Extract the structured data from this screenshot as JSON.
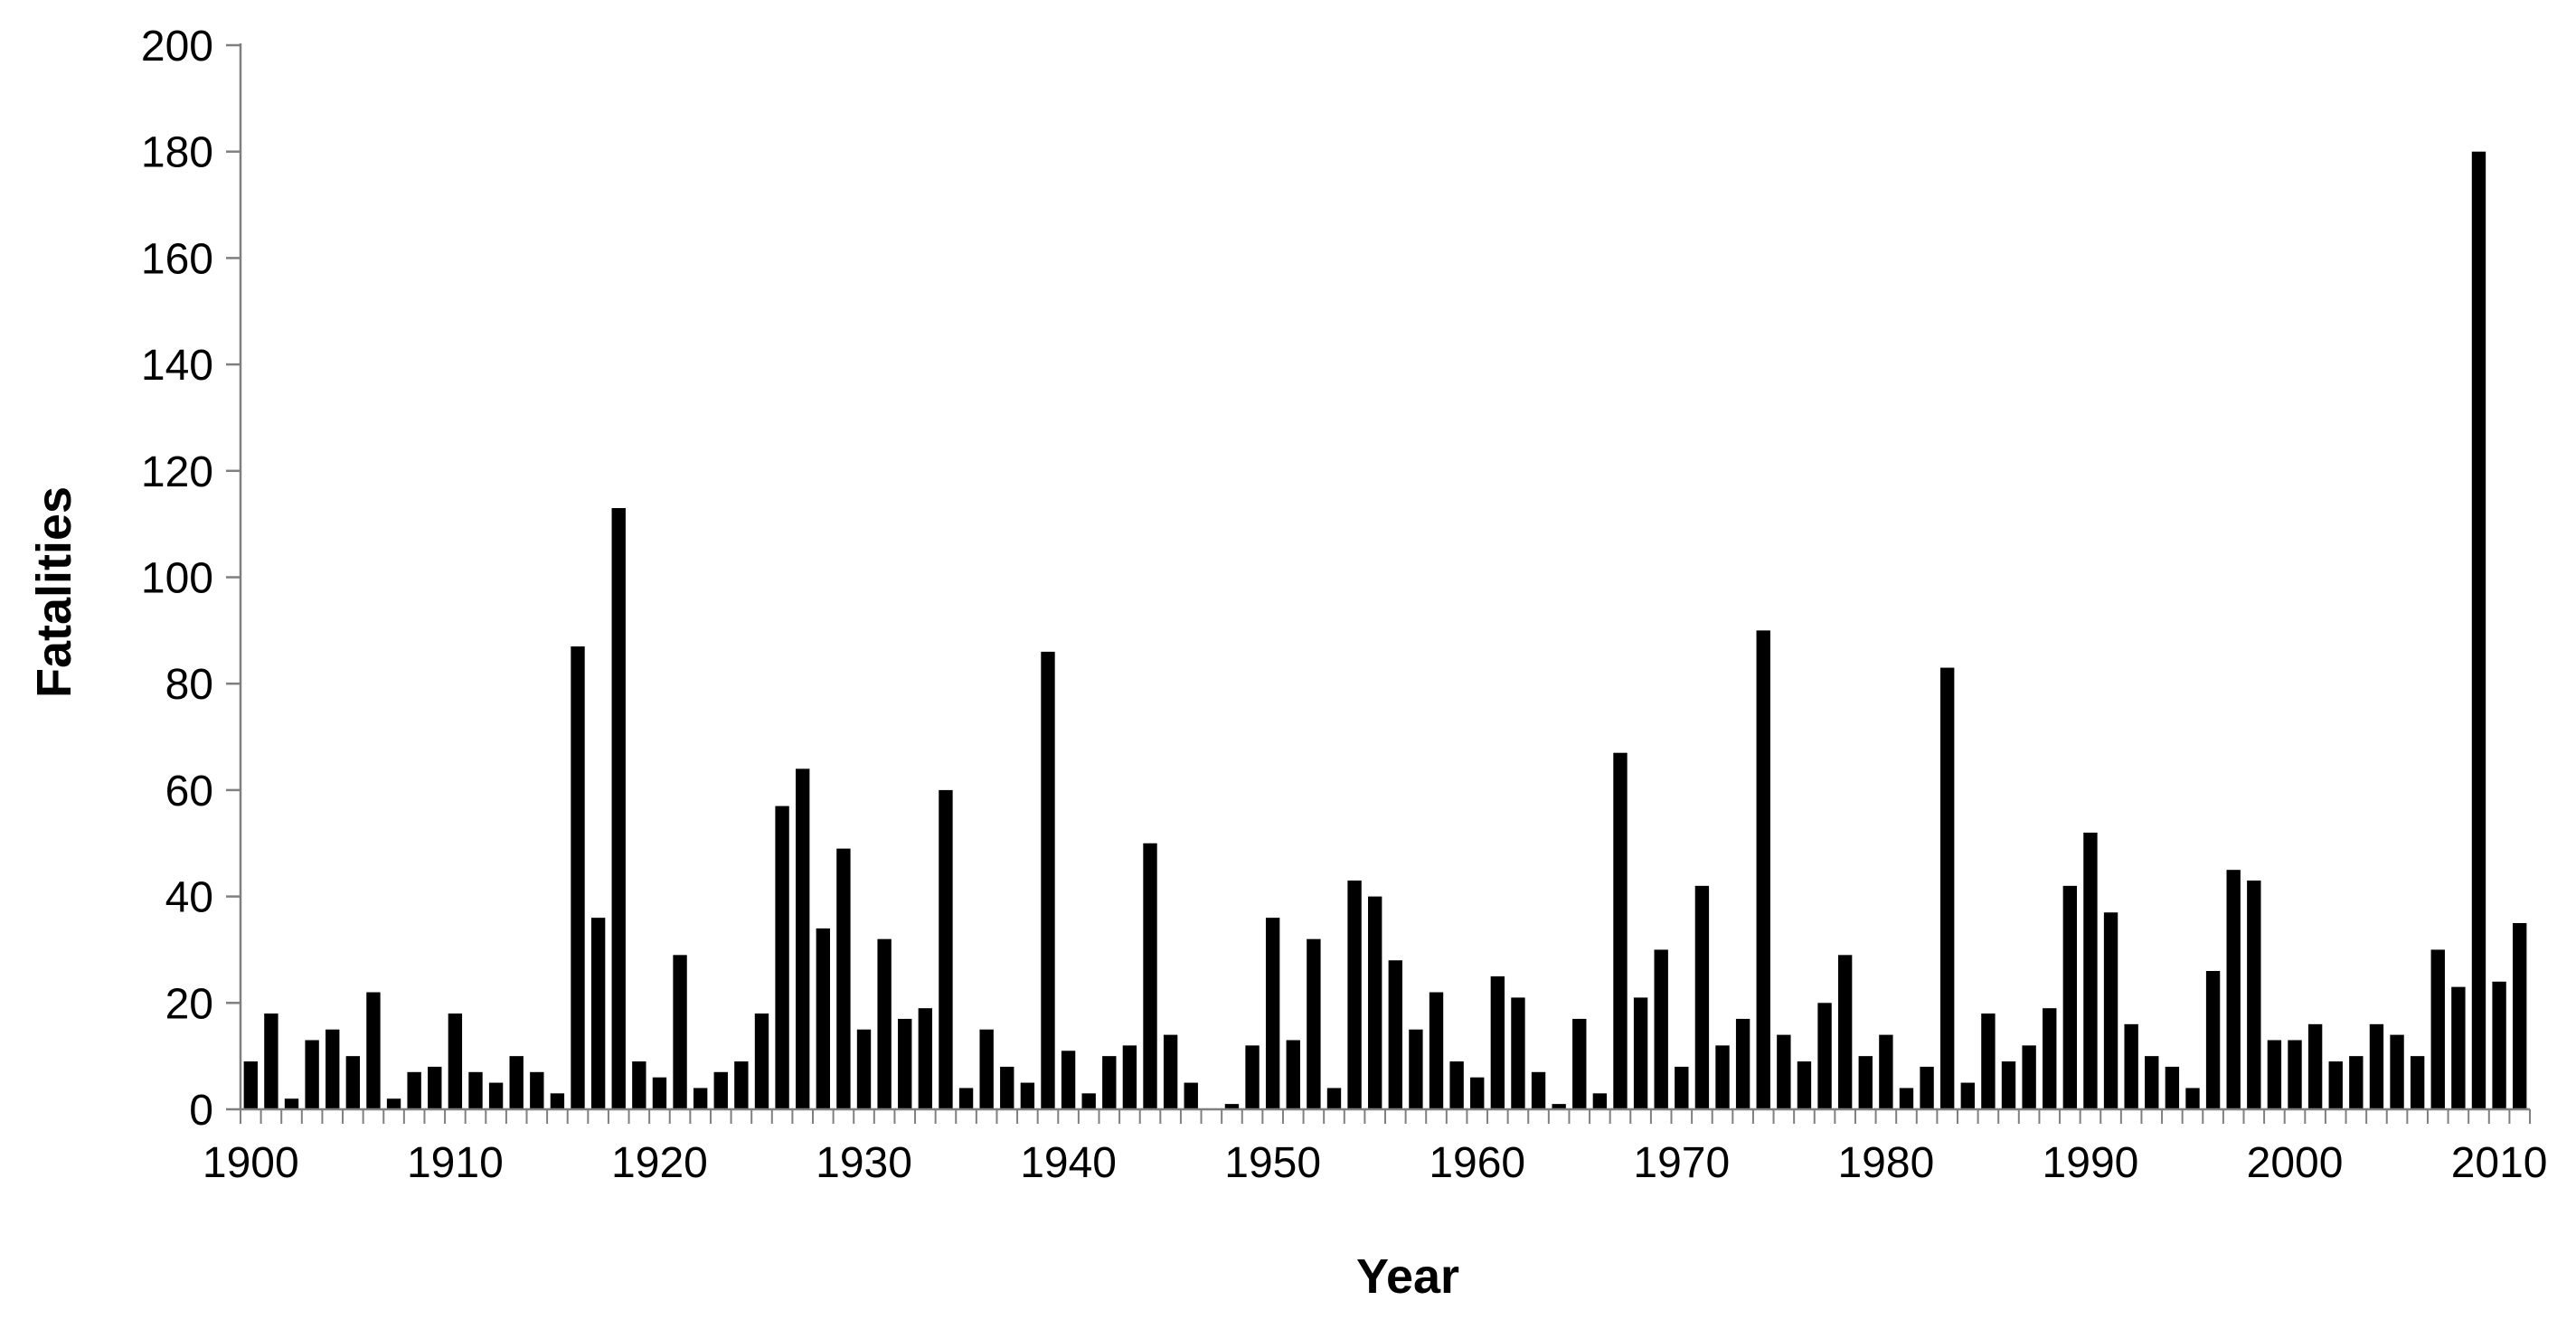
{
  "chart_data": {
    "type": "bar",
    "xlabel": "Year",
    "ylabel": "Fatalities",
    "ylim": [
      0,
      200
    ],
    "yticks": [
      0,
      20,
      40,
      60,
      80,
      100,
      120,
      140,
      160,
      180,
      200
    ],
    "xlim": [
      1900,
      2011
    ],
    "xticks": [
      1900,
      1910,
      1920,
      1930,
      1940,
      1950,
      1960,
      1970,
      1980,
      1990,
      2000,
      2010
    ],
    "bar_color": "#000000",
    "grid": false,
    "legend": false,
    "x": [
      1900,
      1901,
      1902,
      1903,
      1904,
      1905,
      1906,
      1907,
      1908,
      1909,
      1910,
      1911,
      1912,
      1913,
      1914,
      1915,
      1916,
      1917,
      1918,
      1919,
      1920,
      1921,
      1922,
      1923,
      1924,
      1925,
      1926,
      1927,
      1928,
      1929,
      1930,
      1931,
      1932,
      1933,
      1934,
      1935,
      1936,
      1937,
      1938,
      1939,
      1940,
      1941,
      1942,
      1943,
      1944,
      1945,
      1946,
      1947,
      1948,
      1949,
      1950,
      1951,
      1952,
      1953,
      1954,
      1955,
      1956,
      1957,
      1958,
      1959,
      1960,
      1961,
      1962,
      1963,
      1964,
      1965,
      1966,
      1967,
      1968,
      1969,
      1970,
      1971,
      1972,
      1973,
      1974,
      1975,
      1976,
      1977,
      1978,
      1979,
      1980,
      1981,
      1982,
      1983,
      1984,
      1985,
      1986,
      1987,
      1988,
      1989,
      1990,
      1991,
      1992,
      1993,
      1994,
      1995,
      1996,
      1997,
      1998,
      1999,
      2000,
      2001,
      2002,
      2003,
      2004,
      2005,
      2006,
      2007,
      2008,
      2009,
      2010,
      2011
    ],
    "values": [
      9,
      18,
      2,
      13,
      15,
      10,
      22,
      2,
      7,
      8,
      18,
      7,
      5,
      10,
      7,
      3,
      87,
      36,
      113,
      9,
      6,
      29,
      4,
      7,
      9,
      18,
      57,
      64,
      34,
      49,
      15,
      32,
      17,
      19,
      60,
      4,
      15,
      8,
      5,
      86,
      11,
      3,
      10,
      12,
      50,
      14,
      5,
      0,
      1,
      12,
      36,
      13,
      32,
      4,
      43,
      40,
      28,
      15,
      22,
      9,
      6,
      25,
      21,
      7,
      1,
      17,
      3,
      67,
      21,
      30,
      8,
      42,
      12,
      17,
      90,
      14,
      9,
      20,
      29,
      10,
      14,
      4,
      8,
      83,
      5,
      18,
      9,
      12,
      19,
      42,
      52,
      37,
      16,
      10,
      8,
      4,
      26,
      45,
      43,
      13,
      13,
      16,
      9,
      10,
      16,
      14,
      10,
      30,
      23,
      180,
      24,
      35
    ]
  }
}
